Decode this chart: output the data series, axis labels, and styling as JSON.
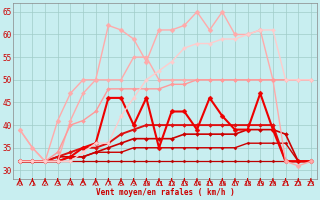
{
  "xlabel": "Vent moyen/en rafales ( km/h )",
  "xlim": [
    -0.5,
    23.5
  ],
  "ylim": [
    28,
    67
  ],
  "yticks": [
    30,
    35,
    40,
    45,
    50,
    55,
    60,
    65
  ],
  "xticks": [
    0,
    1,
    2,
    3,
    4,
    5,
    6,
    7,
    8,
    9,
    10,
    11,
    12,
    13,
    14,
    15,
    16,
    17,
    18,
    19,
    20,
    21,
    22,
    23
  ],
  "bg_color": "#c8eef0",
  "grid_color": "#a0ccc8",
  "series": [
    {
      "y": [
        32,
        32,
        32,
        32,
        32,
        32,
        32,
        32,
        32,
        32,
        32,
        32,
        32,
        32,
        32,
        32,
        32,
        32,
        32,
        32,
        32,
        32,
        32,
        32
      ],
      "color": "#bb0000",
      "lw": 0.9,
      "marker": "D",
      "ms": 1.5
    },
    {
      "y": [
        32,
        32,
        32,
        32,
        33,
        33,
        34,
        34,
        34,
        35,
        35,
        35,
        35,
        35,
        35,
        35,
        35,
        35,
        36,
        36,
        36,
        36,
        32,
        32
      ],
      "color": "#cc0000",
      "lw": 1.0,
      "marker": "D",
      "ms": 1.5
    },
    {
      "y": [
        32,
        32,
        32,
        33,
        33,
        33,
        34,
        35,
        36,
        37,
        37,
        37,
        37,
        38,
        38,
        38,
        38,
        38,
        39,
        39,
        39,
        38,
        32,
        32
      ],
      "color": "#cc0000",
      "lw": 1.2,
      "marker": "D",
      "ms": 2.0
    },
    {
      "y": [
        32,
        32,
        32,
        33,
        34,
        35,
        35,
        36,
        38,
        39,
        40,
        40,
        40,
        40,
        40,
        40,
        40,
        40,
        40,
        40,
        40,
        32,
        32,
        32
      ],
      "color": "#dd1111",
      "lw": 1.4,
      "marker": "D",
      "ms": 2.0
    },
    {
      "y": [
        32,
        32,
        32,
        32,
        33,
        35,
        36,
        46,
        46,
        40,
        46,
        35,
        43,
        43,
        39,
        46,
        42,
        39,
        39,
        47,
        39,
        32,
        32,
        32
      ],
      "color": "#ee0000",
      "lw": 1.5,
      "marker": "D",
      "ms": 2.5
    },
    {
      "y": [
        39,
        35,
        32,
        32,
        41,
        47,
        50,
        50,
        50,
        55,
        55,
        50,
        50,
        50,
        50,
        50,
        50,
        50,
        50,
        50,
        50,
        50,
        50,
        50
      ],
      "color": "#ffaaaa",
      "lw": 1.0,
      "marker": "D",
      "ms": 2.0
    },
    {
      "y": [
        39,
        35,
        32,
        41,
        47,
        50,
        50,
        62,
        61,
        59,
        54,
        61,
        61,
        62,
        65,
        61,
        65,
        60,
        60,
        61,
        50,
        32,
        31,
        32
      ],
      "color": "#ffaaaa",
      "lw": 1.0,
      "marker": "D",
      "ms": 2.5
    },
    {
      "y": [
        32,
        32,
        32,
        34,
        40,
        41,
        43,
        48,
        48,
        48,
        48,
        48,
        49,
        49,
        50,
        50,
        50,
        50,
        50,
        50,
        50,
        50,
        50,
        50
      ],
      "color": "#ff9999",
      "lw": 1.0,
      "marker": "D",
      "ms": 2.0
    },
    {
      "y": [
        32,
        32,
        32,
        32,
        32,
        34,
        36,
        36,
        42,
        46,
        50,
        52,
        54,
        57,
        58,
        58,
        59,
        59,
        60,
        61,
        61,
        50,
        50,
        50
      ],
      "color": "#ffcccc",
      "lw": 1.0,
      "marker": "D",
      "ms": 2.0
    }
  ]
}
